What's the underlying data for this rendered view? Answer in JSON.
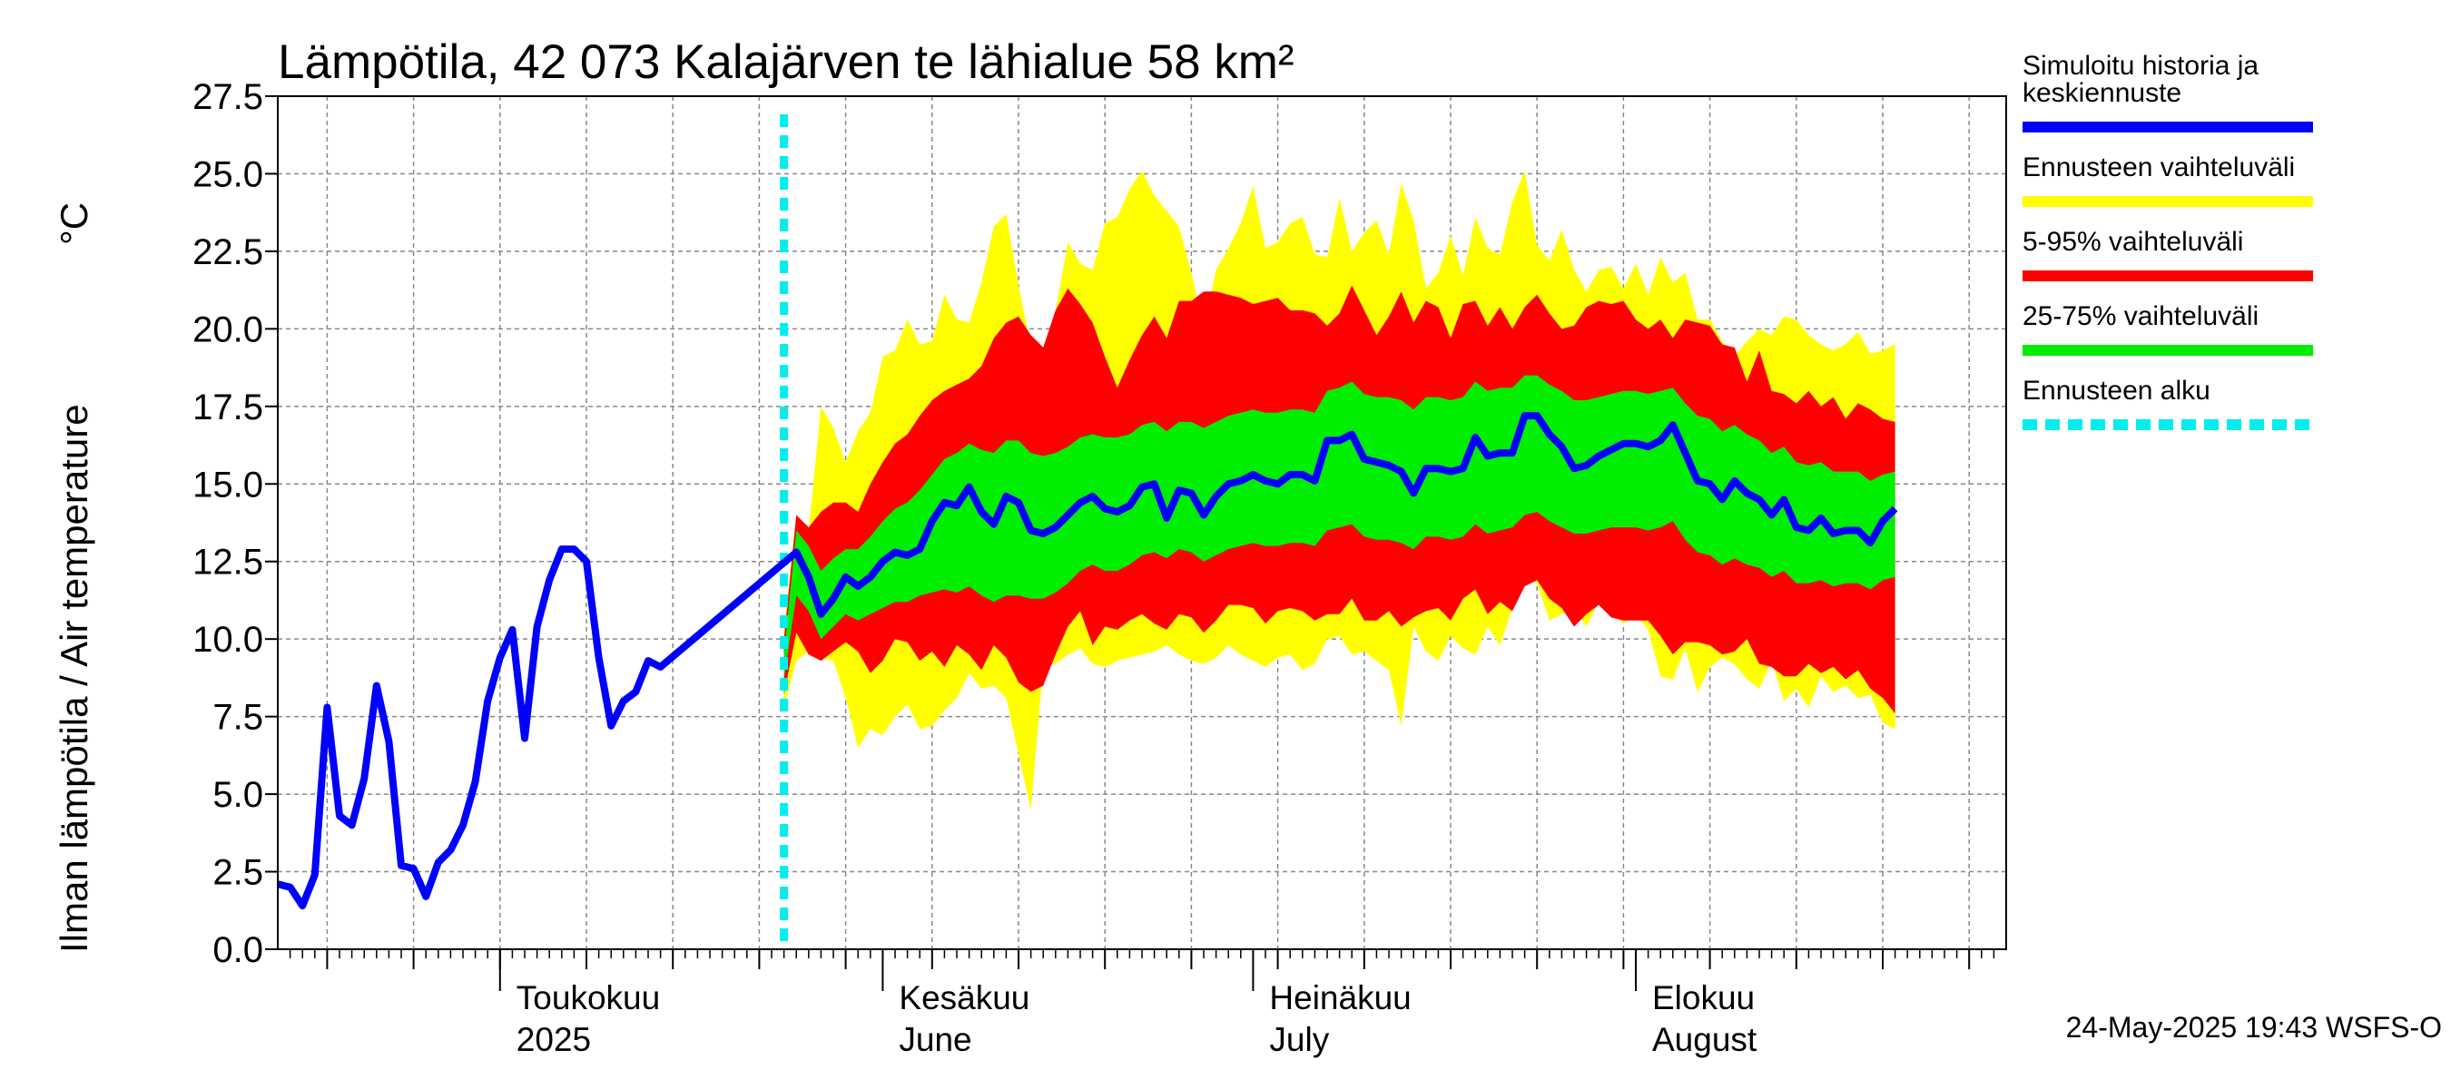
{
  "chart_data": {
    "type": "area",
    "title": "Lämpötila, 42 073 Kalajärven te lähialue 58 km²",
    "ylabel": "Ilman lämpötila / Air temperature",
    "yunit": "°C",
    "ylim": [
      0,
      27.5
    ],
    "yticks": [
      "0.0",
      "2.5",
      "5.0",
      "7.5",
      "10.0",
      "12.5",
      "15.0",
      "17.5",
      "20.0",
      "22.5",
      "25.0",
      "27.5"
    ],
    "x_start": "2025-04-13",
    "x_end": "2025-08-31",
    "forecast_start": "2025-05-24",
    "grid": true,
    "months": [
      {
        "date": "2025-05-01",
        "line1": "Toukokuu",
        "line2": "2025"
      },
      {
        "date": "2025-06-01",
        "line1": "Kesäkuu",
        "line2": "June"
      },
      {
        "date": "2025-07-01",
        "line1": "Heinäkuu",
        "line2": "July"
      },
      {
        "date": "2025-08-01",
        "line1": "Elokuu",
        "line2": "August"
      }
    ],
    "history": {
      "start_date": "2025-04-13",
      "values": [
        2.1,
        2.0,
        1.4,
        2.4,
        7.8,
        4.3,
        4.0,
        5.5,
        8.5,
        6.7,
        2.7,
        2.6,
        1.7,
        2.8,
        3.2,
        4.0,
        5.4,
        8.0,
        9.4,
        10.3,
        6.8,
        10.4,
        11.9,
        12.9,
        12.9,
        12.5,
        9.4,
        7.2,
        8.0,
        8.3,
        9.3,
        9.1
      ]
    },
    "forecast": {
      "start_date": "2025-05-24",
      "median": [
        9.1,
        12.8,
        12.0,
        10.8,
        11.3,
        12.0,
        11.7,
        12.0,
        12.5,
        12.8,
        12.7,
        12.9,
        13.8,
        14.4,
        14.3,
        14.9,
        14.1,
        13.7,
        14.6,
        14.4,
        13.5,
        13.4,
        13.6,
        14.0,
        14.4,
        14.6,
        14.2,
        14.1,
        14.3,
        14.9,
        15.0,
        13.9,
        14.8,
        14.7,
        14.0,
        14.6,
        15.0,
        15.1,
        15.3,
        15.1,
        15.0,
        15.3,
        15.3,
        15.1,
        16.4,
        16.4,
        16.6,
        15.8,
        15.7,
        15.6,
        15.4,
        14.7,
        15.5,
        15.5,
        15.4,
        15.5,
        16.5,
        15.9,
        16.0,
        16.0,
        17.2,
        17.2,
        16.6,
        16.2,
        15.5,
        15.6,
        15.9,
        16.1,
        16.3,
        16.3,
        16.2,
        16.4,
        16.9,
        16.0,
        15.1,
        15.0,
        14.5,
        15.1,
        14.7,
        14.5,
        14.0,
        14.5,
        13.6,
        13.5,
        13.9,
        13.4,
        13.5,
        13.5,
        13.1,
        13.8,
        14.2
      ],
      "p25": [
        8.7,
        11.4,
        10.9,
        10.0,
        10.4,
        10.8,
        10.6,
        10.8,
        11.0,
        11.2,
        11.2,
        11.4,
        11.5,
        11.6,
        11.5,
        11.7,
        11.4,
        11.2,
        11.4,
        11.4,
        11.3,
        11.3,
        11.5,
        11.8,
        12.2,
        12.4,
        12.2,
        12.2,
        12.4,
        12.7,
        12.8,
        12.6,
        12.9,
        12.8,
        12.5,
        12.7,
        12.9,
        13.0,
        13.1,
        13.0,
        13.0,
        13.1,
        13.1,
        13.0,
        13.5,
        13.6,
        13.7,
        13.3,
        13.2,
        13.2,
        13.1,
        12.9,
        13.3,
        13.3,
        13.2,
        13.3,
        13.7,
        13.4,
        13.5,
        13.6,
        14.0,
        14.1,
        13.8,
        13.6,
        13.4,
        13.4,
        13.5,
        13.6,
        13.6,
        13.6,
        13.5,
        13.6,
        13.8,
        13.2,
        12.8,
        12.7,
        12.4,
        12.6,
        12.4,
        12.3,
        12.0,
        12.2,
        11.8,
        11.8,
        11.9,
        11.7,
        11.8,
        11.8,
        11.6,
        11.9,
        12.0
      ],
      "p75": [
        9.5,
        13.5,
        13.0,
        12.2,
        12.6,
        12.9,
        12.9,
        13.3,
        13.8,
        14.2,
        14.4,
        14.8,
        15.3,
        15.8,
        16.0,
        16.3,
        16.1,
        16.0,
        16.4,
        16.4,
        16.0,
        15.9,
        16.0,
        16.2,
        16.5,
        16.6,
        16.5,
        16.5,
        16.6,
        16.9,
        17.0,
        16.7,
        17.0,
        17.0,
        16.8,
        17.0,
        17.2,
        17.3,
        17.4,
        17.3,
        17.3,
        17.4,
        17.4,
        17.3,
        18.0,
        18.1,
        18.3,
        17.9,
        17.8,
        17.8,
        17.7,
        17.4,
        17.8,
        17.8,
        17.7,
        17.8,
        18.3,
        18.0,
        18.1,
        18.1,
        18.5,
        18.5,
        18.2,
        18.0,
        17.7,
        17.7,
        17.8,
        17.9,
        18.0,
        18.0,
        17.9,
        18.0,
        18.1,
        17.6,
        17.2,
        17.1,
        16.7,
        16.9,
        16.6,
        16.4,
        16.0,
        16.2,
        15.7,
        15.6,
        15.7,
        15.4,
        15.4,
        15.4,
        15.1,
        15.3,
        15.4
      ],
      "p5": [
        8.2,
        10.2,
        9.5,
        9.3,
        9.6,
        9.9,
        9.6,
        8.9,
        9.3,
        10.0,
        9.9,
        9.3,
        9.6,
        9.1,
        9.8,
        9.5,
        9.0,
        9.8,
        9.4,
        8.6,
        8.3,
        8.5,
        9.5,
        10.4,
        10.9,
        9.8,
        10.4,
        10.3,
        10.6,
        10.8,
        10.5,
        10.3,
        10.8,
        10.7,
        10.2,
        10.6,
        11.1,
        11.1,
        11.0,
        10.5,
        10.9,
        11.0,
        10.9,
        10.6,
        10.8,
        10.8,
        11.3,
        10.6,
        10.6,
        10.9,
        10.4,
        10.7,
        10.9,
        11.0,
        10.6,
        11.3,
        11.6,
        10.8,
        11.2,
        10.9,
        11.7,
        11.9,
        11.3,
        11.0,
        10.4,
        10.8,
        11.1,
        10.7,
        10.6,
        10.6,
        10.6,
        10.1,
        9.5,
        9.9,
        9.9,
        9.8,
        9.5,
        9.6,
        10.0,
        9.2,
        9.1,
        8.8,
        8.8,
        9.2,
        8.9,
        9.1,
        8.7,
        9.0,
        8.4,
        8.1,
        7.6
      ],
      "p95": [
        10.0,
        14.0,
        13.6,
        14.1,
        14.4,
        14.4,
        14.1,
        15.0,
        15.7,
        16.3,
        16.6,
        17.2,
        17.7,
        18.0,
        18.2,
        18.4,
        18.8,
        19.7,
        20.2,
        20.4,
        19.8,
        19.4,
        20.6,
        21.3,
        20.8,
        20.2,
        19.1,
        18.1,
        19.0,
        19.8,
        20.4,
        19.7,
        20.9,
        20.9,
        21.2,
        21.2,
        21.1,
        21.0,
        20.8,
        20.9,
        21.0,
        20.6,
        20.6,
        20.5,
        20.1,
        20.5,
        21.4,
        20.6,
        19.8,
        20.4,
        21.2,
        20.2,
        20.9,
        20.7,
        19.7,
        20.8,
        20.9,
        20.1,
        20.7,
        20.0,
        20.7,
        21.1,
        20.5,
        20.0,
        20.1,
        20.7,
        20.9,
        20.8,
        20.9,
        20.3,
        20.0,
        20.3,
        19.7,
        20.3,
        20.2,
        20.1,
        19.5,
        19.4,
        18.3,
        19.3,
        18.0,
        17.9,
        17.6,
        18.0,
        17.5,
        17.8,
        17.1,
        17.6,
        17.4,
        17.1,
        17.0
      ],
      "min": [
        7.8,
        9.3,
        9.6,
        9.4,
        9.3,
        8.1,
        6.5,
        7.1,
        6.9,
        7.5,
        7.9,
        7.1,
        7.2,
        7.7,
        8.1,
        8.9,
        8.4,
        8.5,
        8.1,
        6.3,
        4.5,
        9.1,
        9.2,
        9.5,
        9.7,
        9.2,
        9.1,
        9.3,
        9.4,
        9.5,
        9.6,
        9.8,
        9.5,
        9.3,
        9.2,
        9.4,
        9.8,
        9.5,
        9.3,
        9.1,
        9.4,
        9.5,
        9.0,
        9.2,
        10.0,
        10.1,
        9.5,
        9.6,
        9.3,
        9.0,
        7.2,
        10.4,
        9.6,
        9.3,
        10.1,
        9.7,
        9.5,
        10.4,
        9.8,
        11.0,
        12.0,
        11.8,
        10.6,
        10.8,
        11.0,
        10.4,
        11.2,
        10.9,
        10.5,
        10.8,
        10.3,
        8.8,
        8.7,
        9.7,
        8.3,
        9.1,
        9.4,
        9.2,
        8.7,
        8.4,
        9.3,
        8.0,
        8.4,
        7.8,
        8.8,
        8.3,
        8.5,
        8.1,
        8.2,
        7.3,
        7.1
      ],
      "max": [
        10.3,
        14.0,
        13.5,
        17.5,
        16.8,
        15.7,
        16.7,
        17.3,
        19.1,
        19.3,
        20.3,
        19.5,
        19.6,
        21.1,
        20.3,
        20.2,
        21.5,
        23.3,
        23.7,
        21.4,
        19.4,
        18.5,
        20.6,
        22.8,
        22.1,
        21.9,
        23.4,
        23.6,
        24.5,
        25.1,
        24.3,
        23.8,
        23.3,
        21.8,
        20.0,
        21.9,
        22.6,
        23.4,
        24.6,
        22.6,
        22.8,
        23.4,
        23.6,
        22.4,
        22.3,
        24.2,
        22.5,
        23.1,
        23.5,
        22.4,
        24.7,
        23.5,
        21.3,
        21.8,
        23.0,
        21.7,
        23.6,
        22.6,
        22.4,
        24.1,
        25.1,
        22.7,
        22.2,
        23.2,
        21.9,
        21.2,
        21.9,
        22.0,
        21.3,
        22.1,
        21.1,
        22.3,
        21.5,
        21.8,
        20.3,
        20.3,
        19.6,
        19.1,
        19.6,
        20.0,
        19.8,
        20.4,
        20.3,
        19.8,
        19.5,
        19.3,
        19.5,
        19.9,
        19.2,
        19.3,
        19.5
      ]
    },
    "colors": {
      "history": "#0000ff",
      "range": "#ffff00",
      "p5_95": "#ff0000",
      "p25_75": "#00ee00",
      "forecast_start": "#00eeee"
    },
    "legend_position": "right",
    "legend": [
      {
        "text": "Simuloitu historia ja keskiennuste",
        "lines": [
          "Simuloitu historia ja",
          "keskiennuste"
        ],
        "color": "#0000ff",
        "style": "solid"
      },
      {
        "text": "Ennusteen vaihteluväli",
        "lines": [
          "Ennusteen vaihteluväli"
        ],
        "color": "#ffff00",
        "style": "solid"
      },
      {
        "text": "5-95% vaihteluväli",
        "lines": [
          "5-95% vaihteluväli"
        ],
        "color": "#ff0000",
        "style": "solid"
      },
      {
        "text": "25-75% vaihteluväli",
        "lines": [
          "25-75% vaihteluväli"
        ],
        "color": "#00ee00",
        "style": "solid"
      },
      {
        "text": "Ennusteen alku",
        "lines": [
          "Ennusteen alku"
        ],
        "color": "#00eeee",
        "style": "dashed"
      }
    ],
    "footer": "24-May-2025 19:43 WSFS-O"
  }
}
